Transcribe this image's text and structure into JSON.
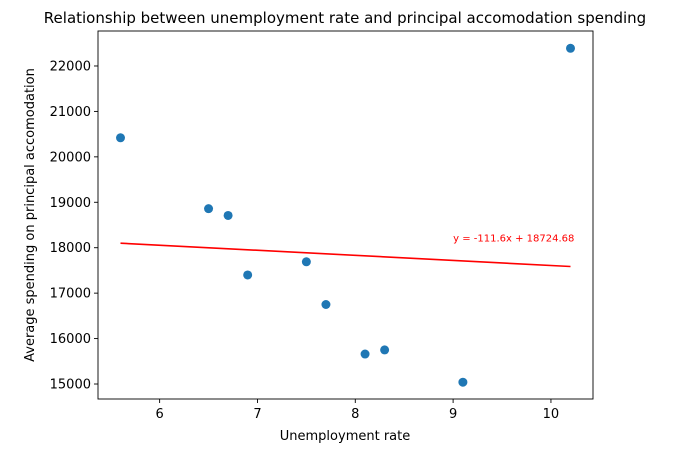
{
  "chart_data": {
    "type": "scatter",
    "title": "Relationship between unemployment rate and principal accomodation spending",
    "xlabel": "Unemployment rate",
    "ylabel": "Average spending on principal accomodation",
    "xlim": [
      5.37,
      10.43
    ],
    "ylim": [
      14670,
      22770
    ],
    "x_ticks": [
      6,
      7,
      8,
      9,
      10
    ],
    "y_ticks": [
      15000,
      16000,
      17000,
      18000,
      19000,
      20000,
      21000,
      22000
    ],
    "x_tick_labels": [
      "6",
      "7",
      "8",
      "9",
      "10"
    ],
    "y_tick_labels": [
      "15000",
      "16000",
      "17000",
      "18000",
      "19000",
      "20000",
      "21000",
      "22000"
    ],
    "points": [
      {
        "x": 5.6,
        "y": 20420
      },
      {
        "x": 6.5,
        "y": 18860
      },
      {
        "x": 6.7,
        "y": 18710
      },
      {
        "x": 6.9,
        "y": 17400
      },
      {
        "x": 7.5,
        "y": 17690
      },
      {
        "x": 7.7,
        "y": 16750
      },
      {
        "x": 8.1,
        "y": 15660
      },
      {
        "x": 8.3,
        "y": 15750
      },
      {
        "x": 9.1,
        "y": 15040
      },
      {
        "x": 10.2,
        "y": 22390
      }
    ],
    "regression": {
      "slope": -111.6,
      "intercept": 18724.68,
      "x_range": [
        5.6,
        10.2
      ],
      "equation": "y = -111.6x + 18724.68",
      "label_x": 9.0,
      "label_y": 18140
    },
    "colors": {
      "points": "#1f77b4",
      "line": "#ff0000",
      "equation": "#ff0000"
    }
  }
}
